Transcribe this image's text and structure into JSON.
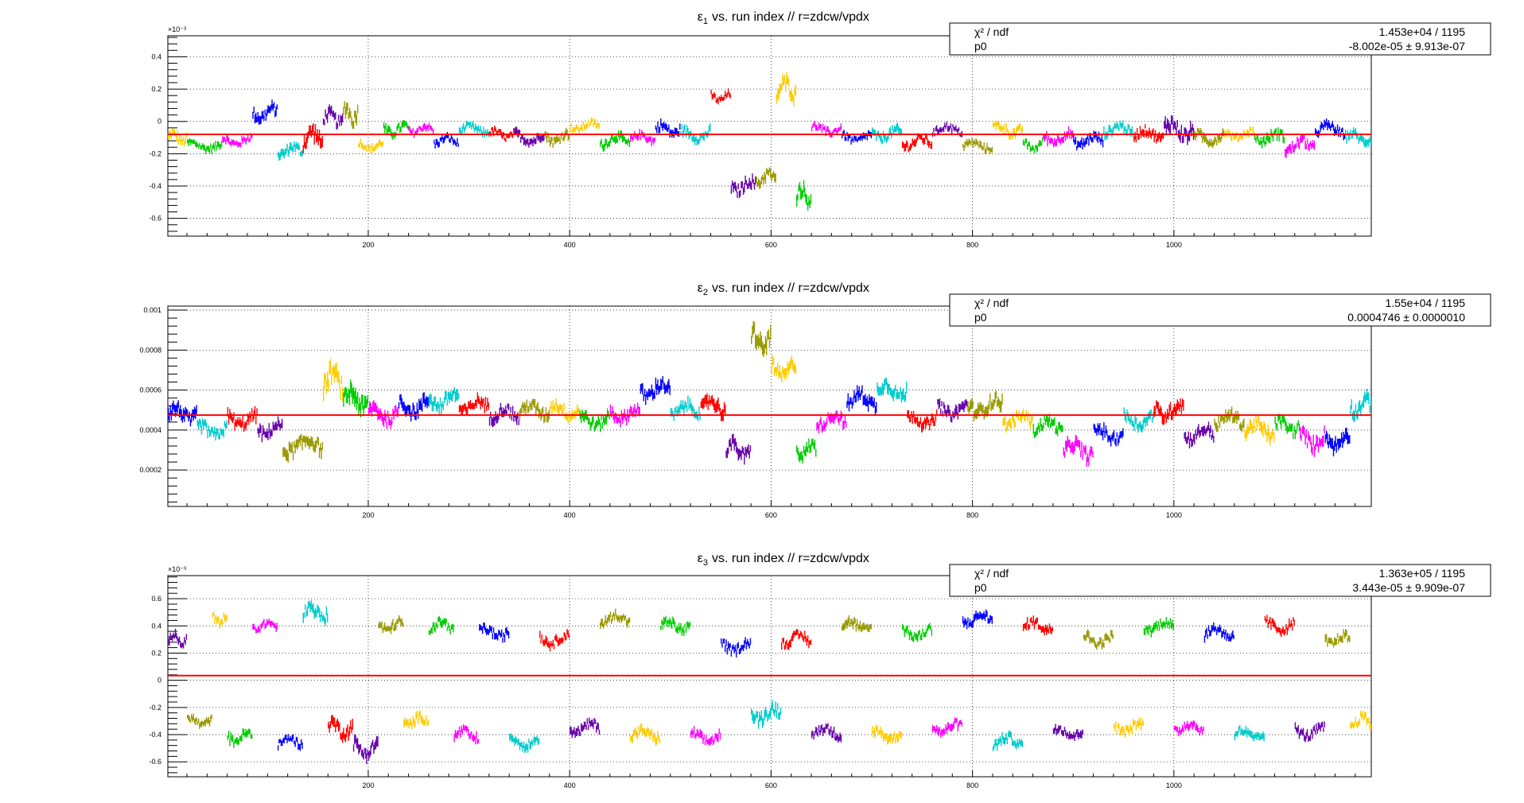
{
  "chart_data": [
    {
      "type": "scatter",
      "title": "vs. run index // r=zdcw/vpdx",
      "title_symbol": "ε",
      "title_subscript": "1",
      "xlim": [
        1,
        1196
      ],
      "ylim": [
        -0.00071,
        0.00053
      ],
      "x_ticks": [
        200,
        400,
        600,
        800,
        1000
      ],
      "y_ticks": [
        -0.0006,
        -0.0004,
        -0.0002,
        0,
        0.0002,
        0.0004
      ],
      "y_tick_labels": [
        "-0.6",
        "-0.4",
        "-0.2",
        "0",
        "0.2",
        "0.4"
      ],
      "exponent_label": "×10⁻³",
      "grid": true,
      "fit": {
        "p0": -8.002e-05
      },
      "stats": [
        {
          "label": "χ² / ndf",
          "value": "1.453e+04 / 1195"
        },
        {
          "label": "p0",
          "value": "-8.002e-05 ± 9.913e-07"
        }
      ],
      "segments": [
        {
          "x0": 1,
          "x1": 20,
          "y": -0.0001,
          "amp": 5e-05
        },
        {
          "x0": 20,
          "x1": 55,
          "y": -0.00015,
          "amp": 4e-05
        },
        {
          "x0": 55,
          "x1": 85,
          "y": -0.00012,
          "amp": 4e-05
        },
        {
          "x0": 85,
          "x1": 110,
          "y": 5e-05,
          "amp": 6e-05
        },
        {
          "x0": 110,
          "x1": 135,
          "y": -0.00018,
          "amp": 5e-05
        },
        {
          "x0": 135,
          "x1": 155,
          "y": -0.0001,
          "amp": 8e-05
        },
        {
          "x0": 155,
          "x1": 175,
          "y": 2e-05,
          "amp": 6e-05
        },
        {
          "x0": 175,
          "x1": 190,
          "y": 5e-05,
          "amp": 8e-05
        },
        {
          "x0": 190,
          "x1": 215,
          "y": -0.00015,
          "amp": 4e-05
        },
        {
          "x0": 215,
          "x1": 240,
          "y": -5e-05,
          "amp": 5e-05
        },
        {
          "x0": 240,
          "x1": 265,
          "y": -5e-05,
          "amp": 4e-05
        },
        {
          "x0": 265,
          "x1": 290,
          "y": -0.00012,
          "amp": 4e-05
        },
        {
          "x0": 290,
          "x1": 320,
          "y": -5e-05,
          "amp": 4e-05
        },
        {
          "x0": 320,
          "x1": 345,
          "y": -8e-05,
          "amp": 4e-05
        },
        {
          "x0": 345,
          "x1": 375,
          "y": -0.0001,
          "amp": 5e-05
        },
        {
          "x0": 375,
          "x1": 400,
          "y": -0.0001,
          "amp": 5e-05
        },
        {
          "x0": 400,
          "x1": 430,
          "y": -3e-05,
          "amp": 4e-05
        },
        {
          "x0": 430,
          "x1": 460,
          "y": -0.00012,
          "amp": 5e-05
        },
        {
          "x0": 460,
          "x1": 485,
          "y": -0.0001,
          "amp": 4e-05
        },
        {
          "x0": 485,
          "x1": 510,
          "y": -5e-05,
          "amp": 5e-05
        },
        {
          "x0": 510,
          "x1": 540,
          "y": -8e-05,
          "amp": 5e-05
        },
        {
          "x0": 540,
          "x1": 560,
          "y": 0.00015,
          "amp": 4e-05
        },
        {
          "x0": 560,
          "x1": 585,
          "y": -0.0004,
          "amp": 6e-05
        },
        {
          "x0": 585,
          "x1": 605,
          "y": -0.00035,
          "amp": 6e-05
        },
        {
          "x0": 605,
          "x1": 625,
          "y": 0.0002,
          "amp": 8e-05
        },
        {
          "x0": 625,
          "x1": 640,
          "y": -0.00045,
          "amp": 8e-05
        },
        {
          "x0": 640,
          "x1": 670,
          "y": -5e-05,
          "amp": 4e-05
        },
        {
          "x0": 670,
          "x1": 700,
          "y": -0.0001,
          "amp": 4e-05
        },
        {
          "x0": 700,
          "x1": 730,
          "y": -8e-05,
          "amp": 5e-05
        },
        {
          "x0": 730,
          "x1": 760,
          "y": -0.00013,
          "amp": 5e-05
        },
        {
          "x0": 760,
          "x1": 790,
          "y": -5e-05,
          "amp": 4e-05
        },
        {
          "x0": 790,
          "x1": 820,
          "y": -0.00015,
          "amp": 4e-05
        },
        {
          "x0": 820,
          "x1": 850,
          "y": -5e-05,
          "amp": 5e-05
        },
        {
          "x0": 850,
          "x1": 870,
          "y": -0.00015,
          "amp": 4e-05
        },
        {
          "x0": 870,
          "x1": 900,
          "y": -0.0001,
          "amp": 5e-05
        },
        {
          "x0": 900,
          "x1": 930,
          "y": -0.00012,
          "amp": 5e-05
        },
        {
          "x0": 930,
          "x1": 960,
          "y": -5e-05,
          "amp": 5e-05
        },
        {
          "x0": 960,
          "x1": 990,
          "y": -8e-05,
          "amp": 5e-05
        },
        {
          "x0": 990,
          "x1": 1020,
          "y": -5e-05,
          "amp": 8e-05
        },
        {
          "x0": 1020,
          "x1": 1050,
          "y": -0.0001,
          "amp": 5e-05
        },
        {
          "x0": 1050,
          "x1": 1080,
          "y": -8e-05,
          "amp": 4e-05
        },
        {
          "x0": 1080,
          "x1": 1110,
          "y": -0.0001,
          "amp": 5e-05
        },
        {
          "x0": 1110,
          "x1": 1140,
          "y": -0.00015,
          "amp": 6e-05
        },
        {
          "x0": 1140,
          "x1": 1170,
          "y": -5e-05,
          "amp": 5e-05
        },
        {
          "x0": 1170,
          "x1": 1196,
          "y": -0.0001,
          "amp": 5e-05
        }
      ]
    },
    {
      "type": "scatter",
      "title": "vs. run index // r=zdcw/vpdx",
      "title_symbol": "ε",
      "title_subscript": "2",
      "xlim": [
        1,
        1196
      ],
      "ylim": [
        1.77e-05,
        0.00102
      ],
      "x_ticks": [
        200,
        400,
        600,
        800,
        1000
      ],
      "y_ticks": [
        0.0002,
        0.0004,
        0.0006,
        0.0008,
        0.001
      ],
      "y_tick_labels": [
        "0.0002",
        "0.0004",
        "0.0006",
        "0.0008",
        "0.001"
      ],
      "exponent_label": "",
      "grid": true,
      "fit": {
        "p0": 0.0004746
      },
      "stats": [
        {
          "label": "χ² / ndf",
          "value": "1.55e+04 / 1195"
        },
        {
          "label": "p0",
          "value": "0.0004746 ± 0.0000010"
        }
      ],
      "segments": [
        {
          "x0": 1,
          "x1": 30,
          "y": 0.00048,
          "amp": 6e-05
        },
        {
          "x0": 30,
          "x1": 60,
          "y": 0.0004,
          "amp": 5e-05
        },
        {
          "x0": 60,
          "x1": 90,
          "y": 0.00045,
          "amp": 5e-05
        },
        {
          "x0": 90,
          "x1": 115,
          "y": 0.0004,
          "amp": 5e-05
        },
        {
          "x0": 115,
          "x1": 155,
          "y": 0.00032,
          "amp": 6e-05
        },
        {
          "x0": 155,
          "x1": 175,
          "y": 0.00065,
          "amp": 8e-05
        },
        {
          "x0": 175,
          "x1": 200,
          "y": 0.00055,
          "amp": 8e-05
        },
        {
          "x0": 200,
          "x1": 230,
          "y": 0.00048,
          "amp": 6e-05
        },
        {
          "x0": 230,
          "x1": 260,
          "y": 0.00052,
          "amp": 6e-05
        },
        {
          "x0": 260,
          "x1": 290,
          "y": 0.00055,
          "amp": 6e-05
        },
        {
          "x0": 290,
          "x1": 320,
          "y": 0.00052,
          "amp": 5e-05
        },
        {
          "x0": 320,
          "x1": 350,
          "y": 0.00048,
          "amp": 5e-05
        },
        {
          "x0": 350,
          "x1": 380,
          "y": 0.0005,
          "amp": 5e-05
        },
        {
          "x0": 380,
          "x1": 410,
          "y": 0.0005,
          "amp": 5e-05
        },
        {
          "x0": 410,
          "x1": 440,
          "y": 0.00045,
          "amp": 5e-05
        },
        {
          "x0": 440,
          "x1": 470,
          "y": 0.00048,
          "amp": 5e-05
        },
        {
          "x0": 470,
          "x1": 500,
          "y": 0.0006,
          "amp": 6e-05
        },
        {
          "x0": 500,
          "x1": 530,
          "y": 0.0005,
          "amp": 5e-05
        },
        {
          "x0": 530,
          "x1": 555,
          "y": 0.00052,
          "amp": 6e-05
        },
        {
          "x0": 555,
          "x1": 580,
          "y": 0.0003,
          "amp": 6e-05
        },
        {
          "x0": 580,
          "x1": 600,
          "y": 0.00085,
          "amp": 8e-05
        },
        {
          "x0": 600,
          "x1": 625,
          "y": 0.0007,
          "amp": 6e-05
        },
        {
          "x0": 625,
          "x1": 645,
          "y": 0.0003,
          "amp": 5e-05
        },
        {
          "x0": 645,
          "x1": 675,
          "y": 0.00045,
          "amp": 5e-05
        },
        {
          "x0": 675,
          "x1": 705,
          "y": 0.00055,
          "amp": 6e-05
        },
        {
          "x0": 705,
          "x1": 735,
          "y": 0.0006,
          "amp": 6e-05
        },
        {
          "x0": 735,
          "x1": 765,
          "y": 0.00045,
          "amp": 5e-05
        },
        {
          "x0": 765,
          "x1": 795,
          "y": 0.0005,
          "amp": 5e-05
        },
        {
          "x0": 795,
          "x1": 830,
          "y": 0.00052,
          "amp": 6e-05
        },
        {
          "x0": 830,
          "x1": 860,
          "y": 0.00045,
          "amp": 5e-05
        },
        {
          "x0": 860,
          "x1": 890,
          "y": 0.00042,
          "amp": 5e-05
        },
        {
          "x0": 890,
          "x1": 920,
          "y": 0.0003,
          "amp": 6e-05
        },
        {
          "x0": 920,
          "x1": 950,
          "y": 0.00038,
          "amp": 5e-05
        },
        {
          "x0": 950,
          "x1": 980,
          "y": 0.00045,
          "amp": 5e-05
        },
        {
          "x0": 980,
          "x1": 1010,
          "y": 0.0005,
          "amp": 6e-05
        },
        {
          "x0": 1010,
          "x1": 1040,
          "y": 0.00038,
          "amp": 5e-05
        },
        {
          "x0": 1040,
          "x1": 1070,
          "y": 0.00045,
          "amp": 5e-05
        },
        {
          "x0": 1070,
          "x1": 1100,
          "y": 0.0004,
          "amp": 6e-05
        },
        {
          "x0": 1100,
          "x1": 1125,
          "y": 0.00042,
          "amp": 5e-05
        },
        {
          "x0": 1125,
          "x1": 1150,
          "y": 0.00035,
          "amp": 6e-05
        },
        {
          "x0": 1150,
          "x1": 1175,
          "y": 0.00035,
          "amp": 6e-05
        },
        {
          "x0": 1175,
          "x1": 1196,
          "y": 0.00052,
          "amp": 6e-05
        }
      ]
    },
    {
      "type": "scatter",
      "title": "vs. run index // r=zdcw/vpdx",
      "title_symbol": "ε",
      "title_subscript": "3",
      "xlim": [
        1,
        1196
      ],
      "ylim": [
        -0.00071,
        0.00077
      ],
      "x_ticks": [
        200,
        400,
        600,
        800,
        1000
      ],
      "y_ticks": [
        -0.0006,
        -0.0004,
        -0.0002,
        0,
        0.0002,
        0.0004,
        0.0006
      ],
      "y_tick_labels": [
        "-0.6",
        "-0.4",
        "-0.2",
        "0",
        "0.2",
        "0.4",
        "0.6"
      ],
      "exponent_label": "×10⁻³",
      "grid": true,
      "fit": {
        "p0": 3.443e-05
      },
      "stats": [
        {
          "label": "χ² / ndf",
          "value": "1.363e+05 / 1195"
        },
        {
          "label": "p0",
          "value": "3.443e-05 ± 9.909e-07"
        }
      ],
      "segments": [
        {
          "x0": 1,
          "x1": 20,
          "y": 0.0003,
          "amp": 6e-05
        },
        {
          "x0": 20,
          "x1": 45,
          "y": -0.0003,
          "amp": 5e-05
        },
        {
          "x0": 45,
          "x1": 60,
          "y": 0.00045,
          "amp": 5e-05
        },
        {
          "x0": 60,
          "x1": 85,
          "y": -0.00042,
          "amp": 6e-05
        },
        {
          "x0": 85,
          "x1": 110,
          "y": 0.0004,
          "amp": 5e-05
        },
        {
          "x0": 110,
          "x1": 135,
          "y": -0.00045,
          "amp": 5e-05
        },
        {
          "x0": 135,
          "x1": 160,
          "y": 0.0005,
          "amp": 8e-05
        },
        {
          "x0": 160,
          "x1": 185,
          "y": -0.00035,
          "amp": 8e-05
        },
        {
          "x0": 185,
          "x1": 210,
          "y": -0.0005,
          "amp": 8e-05
        },
        {
          "x0": 210,
          "x1": 235,
          "y": 0.0004,
          "amp": 6e-05
        },
        {
          "x0": 235,
          "x1": 260,
          "y": -0.0003,
          "amp": 6e-05
        },
        {
          "x0": 260,
          "x1": 285,
          "y": 0.0004,
          "amp": 6e-05
        },
        {
          "x0": 285,
          "x1": 310,
          "y": -0.0004,
          "amp": 6e-05
        },
        {
          "x0": 310,
          "x1": 340,
          "y": 0.00035,
          "amp": 6e-05
        },
        {
          "x0": 340,
          "x1": 370,
          "y": -0.00045,
          "amp": 6e-05
        },
        {
          "x0": 370,
          "x1": 400,
          "y": 0.0003,
          "amp": 6e-05
        },
        {
          "x0": 400,
          "x1": 430,
          "y": -0.00035,
          "amp": 6e-05
        },
        {
          "x0": 430,
          "x1": 460,
          "y": 0.00045,
          "amp": 6e-05
        },
        {
          "x0": 460,
          "x1": 490,
          "y": -0.0004,
          "amp": 6e-05
        },
        {
          "x0": 490,
          "x1": 520,
          "y": 0.0004,
          "amp": 6e-05
        },
        {
          "x0": 520,
          "x1": 550,
          "y": -0.00042,
          "amp": 6e-05
        },
        {
          "x0": 550,
          "x1": 580,
          "y": 0.00025,
          "amp": 6e-05
        },
        {
          "x0": 580,
          "x1": 610,
          "y": -0.00025,
          "amp": 8e-05
        },
        {
          "x0": 610,
          "x1": 640,
          "y": 0.0003,
          "amp": 6e-05
        },
        {
          "x0": 640,
          "x1": 670,
          "y": -0.00038,
          "amp": 6e-05
        },
        {
          "x0": 670,
          "x1": 700,
          "y": 0.0004,
          "amp": 6e-05
        },
        {
          "x0": 700,
          "x1": 730,
          "y": -0.0004,
          "amp": 6e-05
        },
        {
          "x0": 730,
          "x1": 760,
          "y": 0.00035,
          "amp": 6e-05
        },
        {
          "x0": 760,
          "x1": 790,
          "y": -0.00035,
          "amp": 6e-05
        },
        {
          "x0": 790,
          "x1": 820,
          "y": 0.00045,
          "amp": 6e-05
        },
        {
          "x0": 820,
          "x1": 850,
          "y": -0.00045,
          "amp": 6e-05
        },
        {
          "x0": 850,
          "x1": 880,
          "y": 0.0004,
          "amp": 6e-05
        },
        {
          "x0": 880,
          "x1": 910,
          "y": -0.00038,
          "amp": 6e-05
        },
        {
          "x0": 910,
          "x1": 940,
          "y": 0.0003,
          "amp": 6e-05
        },
        {
          "x0": 940,
          "x1": 970,
          "y": -0.00035,
          "amp": 6e-05
        },
        {
          "x0": 970,
          "x1": 1000,
          "y": 0.0004,
          "amp": 6e-05
        },
        {
          "x0": 1000,
          "x1": 1030,
          "y": -0.00035,
          "amp": 6e-05
        },
        {
          "x0": 1030,
          "x1": 1060,
          "y": 0.00035,
          "amp": 6e-05
        },
        {
          "x0": 1060,
          "x1": 1090,
          "y": -0.0004,
          "amp": 6e-05
        },
        {
          "x0": 1090,
          "x1": 1120,
          "y": 0.0004,
          "amp": 6e-05
        },
        {
          "x0": 1120,
          "x1": 1150,
          "y": -0.00038,
          "amp": 6e-05
        },
        {
          "x0": 1150,
          "x1": 1175,
          "y": 0.0003,
          "amp": 6e-05
        },
        {
          "x0": 1175,
          "x1": 1196,
          "y": -0.0003,
          "amp": 6e-05
        }
      ]
    }
  ],
  "colors": {
    "palette": [
      "#ffcc00",
      "#00cc00",
      "#ff00ff",
      "#0000ff",
      "#00cccc",
      "#ff0000",
      "#6600aa",
      "#999900"
    ],
    "fit_line": "#ff0000",
    "grid": "#000000",
    "axis": "#000000"
  }
}
